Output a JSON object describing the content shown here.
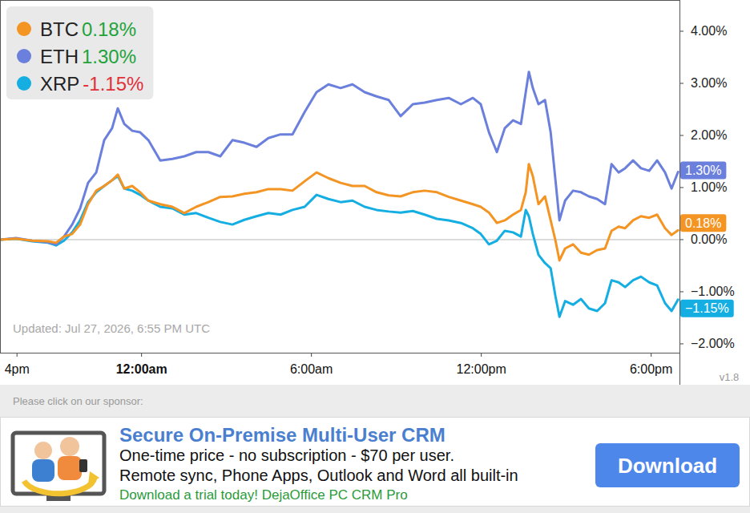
{
  "chart_data": {
    "type": "line",
    "x": [
      19.0,
      19.57,
      20.13,
      20.7,
      20.98,
      21.26,
      21.55,
      21.83,
      22.11,
      22.4,
      22.68,
      22.96,
      23.16,
      23.39,
      23.67,
      23.95,
      24.24,
      24.66,
      25.09,
      25.51,
      25.93,
      26.36,
      26.78,
      27.21,
      27.63,
      28.06,
      28.48,
      28.91,
      29.33,
      29.76,
      30.18,
      30.6,
      31.03,
      31.45,
      31.88,
      32.3,
      32.73,
      33.15,
      33.58,
      34.0,
      34.43,
      34.85,
      35.28,
      35.7,
      35.98,
      36.27,
      36.55,
      36.83,
      37.12,
      37.4,
      37.57,
      37.68,
      37.82,
      38.02,
      38.25,
      38.45,
      38.62,
      38.76,
      38.96,
      39.24,
      39.52,
      39.8,
      40.09,
      40.37,
      40.6,
      40.85,
      41.08,
      41.36,
      41.64,
      41.93,
      42.21,
      42.49,
      42.72,
      42.95
    ],
    "xlim": [
      19,
      43
    ],
    "xticks": [
      {
        "value": 19.6,
        "label": "4pm"
      },
      {
        "value": 24,
        "label": "12:00am"
      },
      {
        "value": 30,
        "label": "6:00am"
      },
      {
        "value": 36,
        "label": "12:00pm"
      },
      {
        "value": 42,
        "label": "6:00pm"
      }
    ],
    "ylim": [
      -2.17,
      4.6
    ],
    "yticks": [
      {
        "value": 4,
        "label": "4.00%"
      },
      {
        "value": 3,
        "label": "3.00%"
      },
      {
        "value": 2,
        "label": "2.00%"
      },
      {
        "value": 1,
        "label": "1.00%"
      },
      {
        "value": 0,
        "label": "0.00%"
      },
      {
        "value": -1,
        "label": "−1.00%"
      },
      {
        "value": -2,
        "label": "−2.00%"
      }
    ],
    "grid": false,
    "legend": "top-left",
    "series": [
      {
        "name": "BTC",
        "color": "#f39423",
        "change": 0.18,
        "change_label": "0.18%",
        "end_label": "0.18%",
        "values": [
          0.0,
          0.02,
          -0.02,
          -0.03,
          -0.06,
          0.06,
          0.11,
          0.29,
          0.68,
          0.94,
          1.03,
          1.14,
          1.25,
          0.98,
          1.03,
          0.91,
          0.75,
          0.68,
          0.63,
          0.51,
          0.63,
          0.72,
          0.82,
          0.83,
          0.88,
          0.91,
          0.97,
          0.97,
          0.94,
          1.12,
          1.29,
          1.18,
          1.09,
          1.03,
          1.03,
          0.91,
          0.85,
          0.83,
          0.91,
          0.94,
          0.91,
          0.82,
          0.75,
          0.68,
          0.63,
          0.52,
          0.32,
          0.37,
          0.48,
          0.57,
          0.91,
          1.45,
          1.22,
          0.68,
          0.83,
          0.37,
          -0.02,
          -0.4,
          -0.17,
          -0.09,
          -0.25,
          -0.29,
          -0.2,
          -0.17,
          0.17,
          0.25,
          0.22,
          0.37,
          0.45,
          0.42,
          0.48,
          0.22,
          0.09,
          0.18
        ]
      },
      {
        "name": "ETH",
        "color": "#6b7fdc",
        "change": 1.3,
        "change_label": "1.30%",
        "end_label": "1.30%",
        "values": [
          0.0,
          0.03,
          -0.02,
          -0.05,
          -0.09,
          0.06,
          0.29,
          0.6,
          1.09,
          1.29,
          1.91,
          2.14,
          2.52,
          2.22,
          2.09,
          2.06,
          1.91,
          1.52,
          1.55,
          1.6,
          1.68,
          1.68,
          1.6,
          1.91,
          1.86,
          1.78,
          1.95,
          2.02,
          2.02,
          2.45,
          2.83,
          2.98,
          2.91,
          2.98,
          2.83,
          2.75,
          2.68,
          2.37,
          2.6,
          2.63,
          2.68,
          2.72,
          2.6,
          2.72,
          2.6,
          2.06,
          1.68,
          2.14,
          2.29,
          2.22,
          2.83,
          3.22,
          2.91,
          2.6,
          2.68,
          2.06,
          1.14,
          0.37,
          0.75,
          0.94,
          0.91,
          0.83,
          0.78,
          0.68,
          1.45,
          1.29,
          1.37,
          1.52,
          1.37,
          1.32,
          1.52,
          1.29,
          0.98,
          1.3
        ]
      },
      {
        "name": "XRP",
        "color": "#15aee3",
        "change": -1.15,
        "change_label": "-1.15%",
        "end_label": "−1.15%",
        "values": [
          0.0,
          0.02,
          -0.03,
          -0.06,
          -0.11,
          -0.02,
          0.14,
          0.37,
          0.72,
          0.91,
          1.03,
          1.14,
          1.22,
          0.98,
          0.94,
          0.86,
          0.75,
          0.63,
          0.6,
          0.48,
          0.51,
          0.42,
          0.34,
          0.29,
          0.38,
          0.45,
          0.51,
          0.48,
          0.57,
          0.63,
          0.86,
          0.78,
          0.72,
          0.75,
          0.63,
          0.57,
          0.54,
          0.52,
          0.55,
          0.48,
          0.4,
          0.37,
          0.32,
          0.22,
          0.11,
          -0.09,
          -0.02,
          0.17,
          0.14,
          0.06,
          0.57,
          0.45,
          0.11,
          -0.29,
          -0.45,
          -0.55,
          -1.09,
          -1.48,
          -1.18,
          -1.25,
          -1.14,
          -1.32,
          -1.37,
          -1.22,
          -0.78,
          -0.82,
          -0.91,
          -0.78,
          -0.71,
          -0.82,
          -0.88,
          -1.22,
          -1.37,
          -1.15
        ]
      }
    ],
    "annotations": [
      "Updated: Jul 27, 2026, 6:55 PM UTC",
      "v1.8"
    ]
  },
  "sponsor": {
    "prompt": "Please click on our sponsor:",
    "title": "Secure On-Premise Multi-User CRM",
    "lines": [
      "One-time price - no subscription - $70 per user.",
      "Remote sync, Phone Apps, Outlook and Word all built-in"
    ],
    "tagline": "Download a trial today! DejaOffice PC CRM Pro",
    "button": "Download"
  }
}
